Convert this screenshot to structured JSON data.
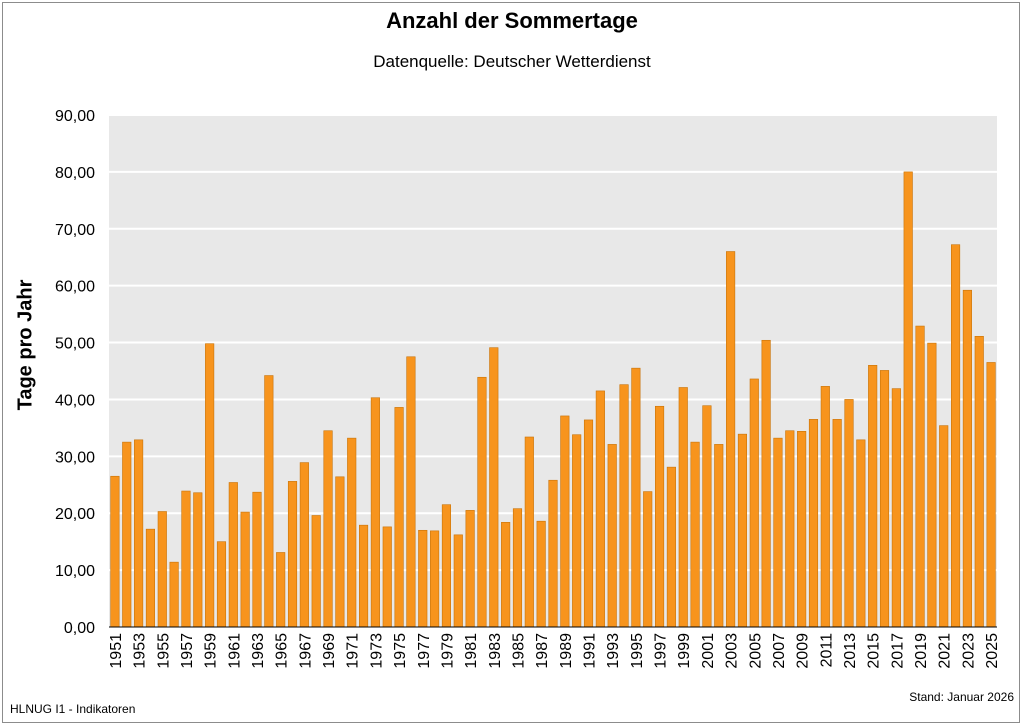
{
  "footer": {
    "source_note": "HLNUG I1 - Indikatoren",
    "stand": "Stand: Januar 2026"
  },
  "colors": {
    "bar": "#F7941D",
    "bar_edge": "#C87308",
    "plot_bg": "#E8E8E8",
    "grid": "#FFFFFF"
  },
  "chart_data": {
    "type": "bar",
    "title": "Anzahl der Sommertage",
    "subtitle": "Datenquelle: Deutscher Wetterdienst",
    "xlabel": "",
    "ylabel": "Tage pro Jahr",
    "ylim": [
      0,
      90
    ],
    "yticks": [
      "0,00",
      "10,00",
      "20,00",
      "30,00",
      "40,00",
      "50,00",
      "60,00",
      "70,00",
      "80,00",
      "90,00"
    ],
    "grid": true,
    "categories": [
      "1951",
      "1952",
      "1953",
      "1954",
      "1955",
      "1956",
      "1957",
      "1958",
      "1959",
      "1960",
      "1961",
      "1962",
      "1963",
      "1964",
      "1965",
      "1966",
      "1967",
      "1968",
      "1969",
      "1970",
      "1971",
      "1972",
      "1973",
      "1974",
      "1975",
      "1976",
      "1977",
      "1978",
      "1979",
      "1980",
      "1981",
      "1982",
      "1983",
      "1984",
      "1985",
      "1986",
      "1987",
      "1988",
      "1989",
      "1990",
      "1991",
      "1992",
      "1993",
      "1994",
      "1995",
      "1996",
      "1997",
      "1998",
      "1999",
      "2000",
      "2001",
      "2002",
      "2003",
      "2004",
      "2005",
      "2006",
      "2007",
      "2008",
      "2009",
      "2010",
      "2011",
      "2012",
      "2013",
      "2014",
      "2015",
      "2016",
      "2017",
      "2018",
      "2019",
      "2020",
      "2021",
      "2022",
      "2023",
      "2024",
      "2025"
    ],
    "x_tick_labels": [
      "1951",
      "1953",
      "1955",
      "1957",
      "1959",
      "1961",
      "1963",
      "1965",
      "1967",
      "1969",
      "1971",
      "1973",
      "1975",
      "1977",
      "1979",
      "1981",
      "1983",
      "1985",
      "1987",
      "1989",
      "1991",
      "1993",
      "1995",
      "1997",
      "1999",
      "2001",
      "2003",
      "2005",
      "2007",
      "2009",
      "2011",
      "2013",
      "2015",
      "2017",
      "2019",
      "2021",
      "2023",
      "2025"
    ],
    "values": [
      26.5,
      32.5,
      32.9,
      17.2,
      20.3,
      11.4,
      23.9,
      23.6,
      49.8,
      15.0,
      25.4,
      20.2,
      23.7,
      44.2,
      13.1,
      25.6,
      28.9,
      19.6,
      34.5,
      26.4,
      33.2,
      17.9,
      40.3,
      17.6,
      38.6,
      47.5,
      17.0,
      16.9,
      21.5,
      16.2,
      20.5,
      43.9,
      49.1,
      18.4,
      20.8,
      33.4,
      18.6,
      25.8,
      37.1,
      33.8,
      36.4,
      41.5,
      32.1,
      42.6,
      45.5,
      23.8,
      38.8,
      28.1,
      42.1,
      32.5,
      38.9,
      32.1,
      66.0,
      33.9,
      43.6,
      50.4,
      33.2,
      34.5,
      34.4,
      36.5,
      42.3,
      36.5,
      40.0,
      32.9,
      46.0,
      45.1,
      41.9,
      80.0,
      52.9,
      49.9,
      35.4,
      67.2,
      59.2,
      51.1,
      46.5
    ]
  }
}
